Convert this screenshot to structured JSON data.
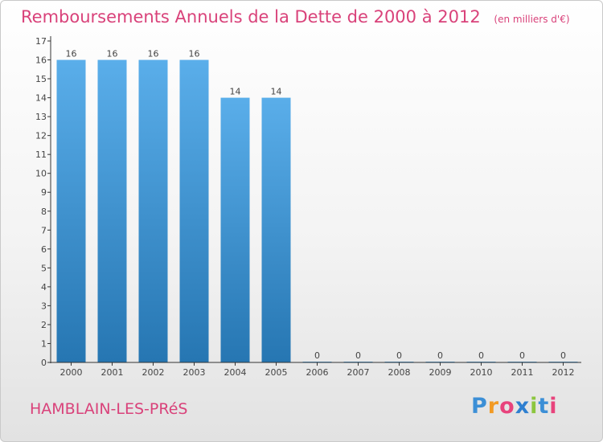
{
  "chart_data": {
    "type": "bar",
    "title": "Remboursements Annuels de la Dette de 2000 à 2012",
    "subtitle": "(en milliers d'€)",
    "categories": [
      "2000",
      "2001",
      "2002",
      "2003",
      "2004",
      "2005",
      "2006",
      "2007",
      "2008",
      "2009",
      "2010",
      "2011",
      "2012"
    ],
    "values": [
      16,
      16,
      16,
      16,
      14,
      14,
      0,
      0,
      0,
      0,
      0,
      0,
      0
    ],
    "data_labels": [
      "16",
      "16",
      "16",
      "16",
      "14",
      "14",
      "0",
      "0",
      "0",
      "0",
      "0",
      "0",
      "0"
    ],
    "y_ticks": [
      "0",
      "1",
      "2",
      "3",
      "4",
      "5",
      "6",
      "7",
      "8",
      "9",
      "10",
      "11",
      "12",
      "13",
      "14",
      "15",
      "16",
      "17"
    ],
    "ylim": [
      0,
      17
    ],
    "xlabel": "",
    "ylabel": "",
    "grid": false,
    "bar_color_top": "#5aaeea",
    "bar_color_bottom": "#2676b2",
    "label_color": "#444444"
  },
  "commune": "HAMBLAIN-LES-PRéS",
  "logo": {
    "text": "Proxiti",
    "letter_colors": [
      "#3c8fd6",
      "#f29a23",
      "#e8437c",
      "#2e7fd0",
      "#8cc63f",
      "#3c8fd6",
      "#e8437c"
    ]
  },
  "accent_color": "#d9427a"
}
